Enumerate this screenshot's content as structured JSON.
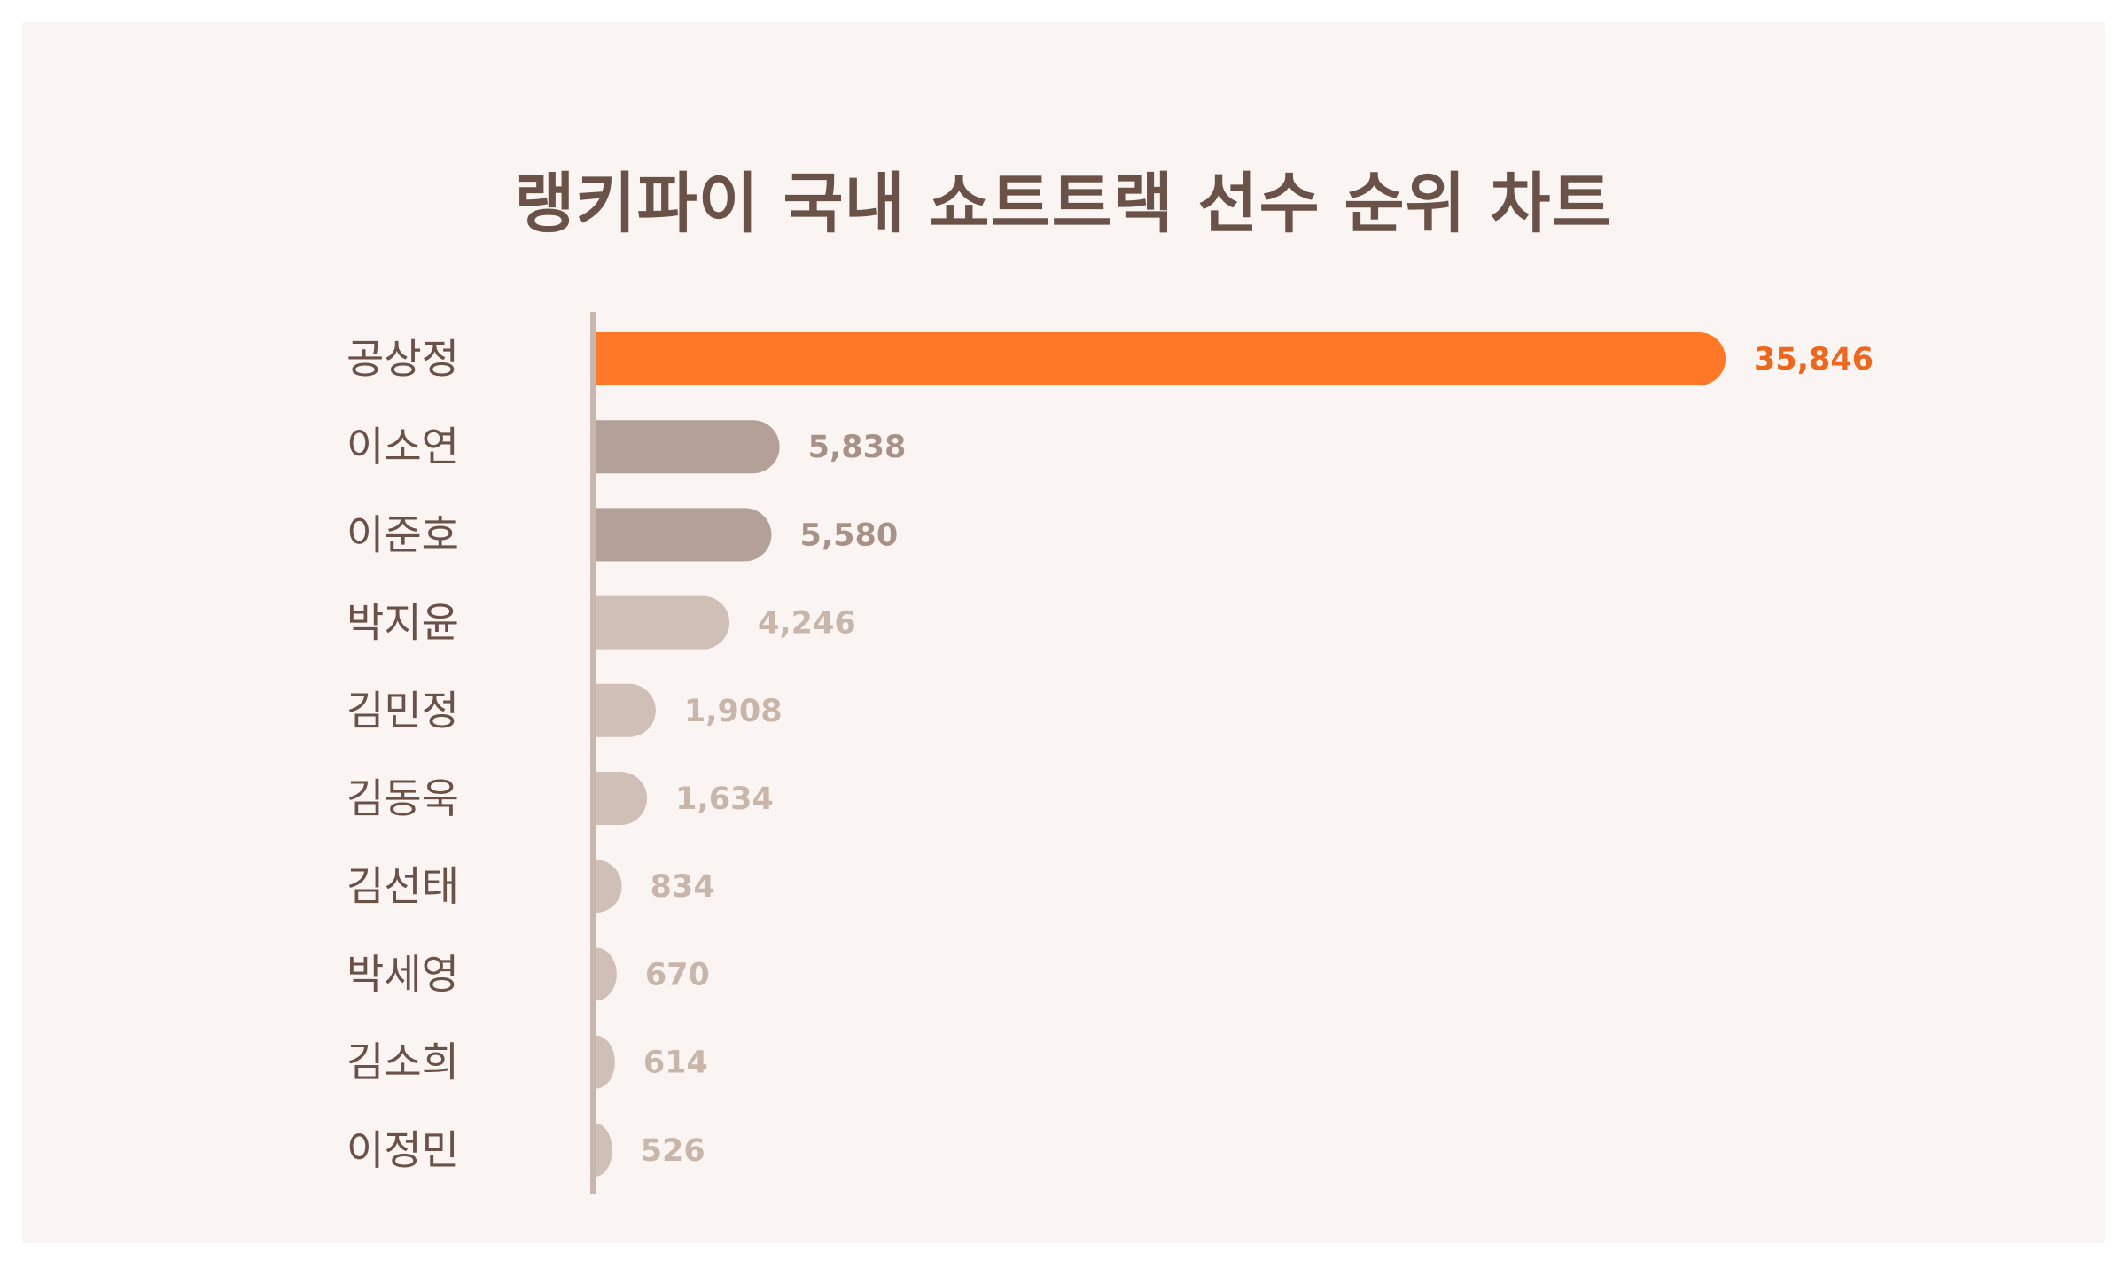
{
  "chart_data": {
    "type": "bar",
    "orientation": "horizontal",
    "title": "랭키파이 국내 쇼트트랙 선수 순위 차트",
    "categories": [
      "공상정",
      "이소연",
      "이준호",
      "박지윤",
      "김민정",
      "김동욱",
      "김선태",
      "박세영",
      "김소희",
      "이정민"
    ],
    "values": [
      35846,
      5838,
      5580,
      4246,
      1908,
      1634,
      834,
      670,
      614,
      526
    ],
    "value_labels": [
      "35,846",
      "5,838",
      "5,580",
      "4,246",
      "1,908",
      "1,634",
      "834",
      "670",
      "614",
      "526"
    ],
    "xlim": [
      0,
      35846
    ],
    "grid": false,
    "legend": "none",
    "colors": {
      "highlight": "#ff7828",
      "highlight_label": "#f0661a",
      "mid": "#b3a199",
      "mid_label": "#a89288",
      "light": "#cfbfb6",
      "light_label": "#c9b6ab",
      "axis": "#c7b7ae",
      "category_label": "#6a5249",
      "title": "#6a5249",
      "background": "#faf5f3"
    },
    "color_tiers": [
      "highlight",
      "mid",
      "mid",
      "light",
      "light",
      "light",
      "light",
      "light",
      "light",
      "light"
    ]
  }
}
